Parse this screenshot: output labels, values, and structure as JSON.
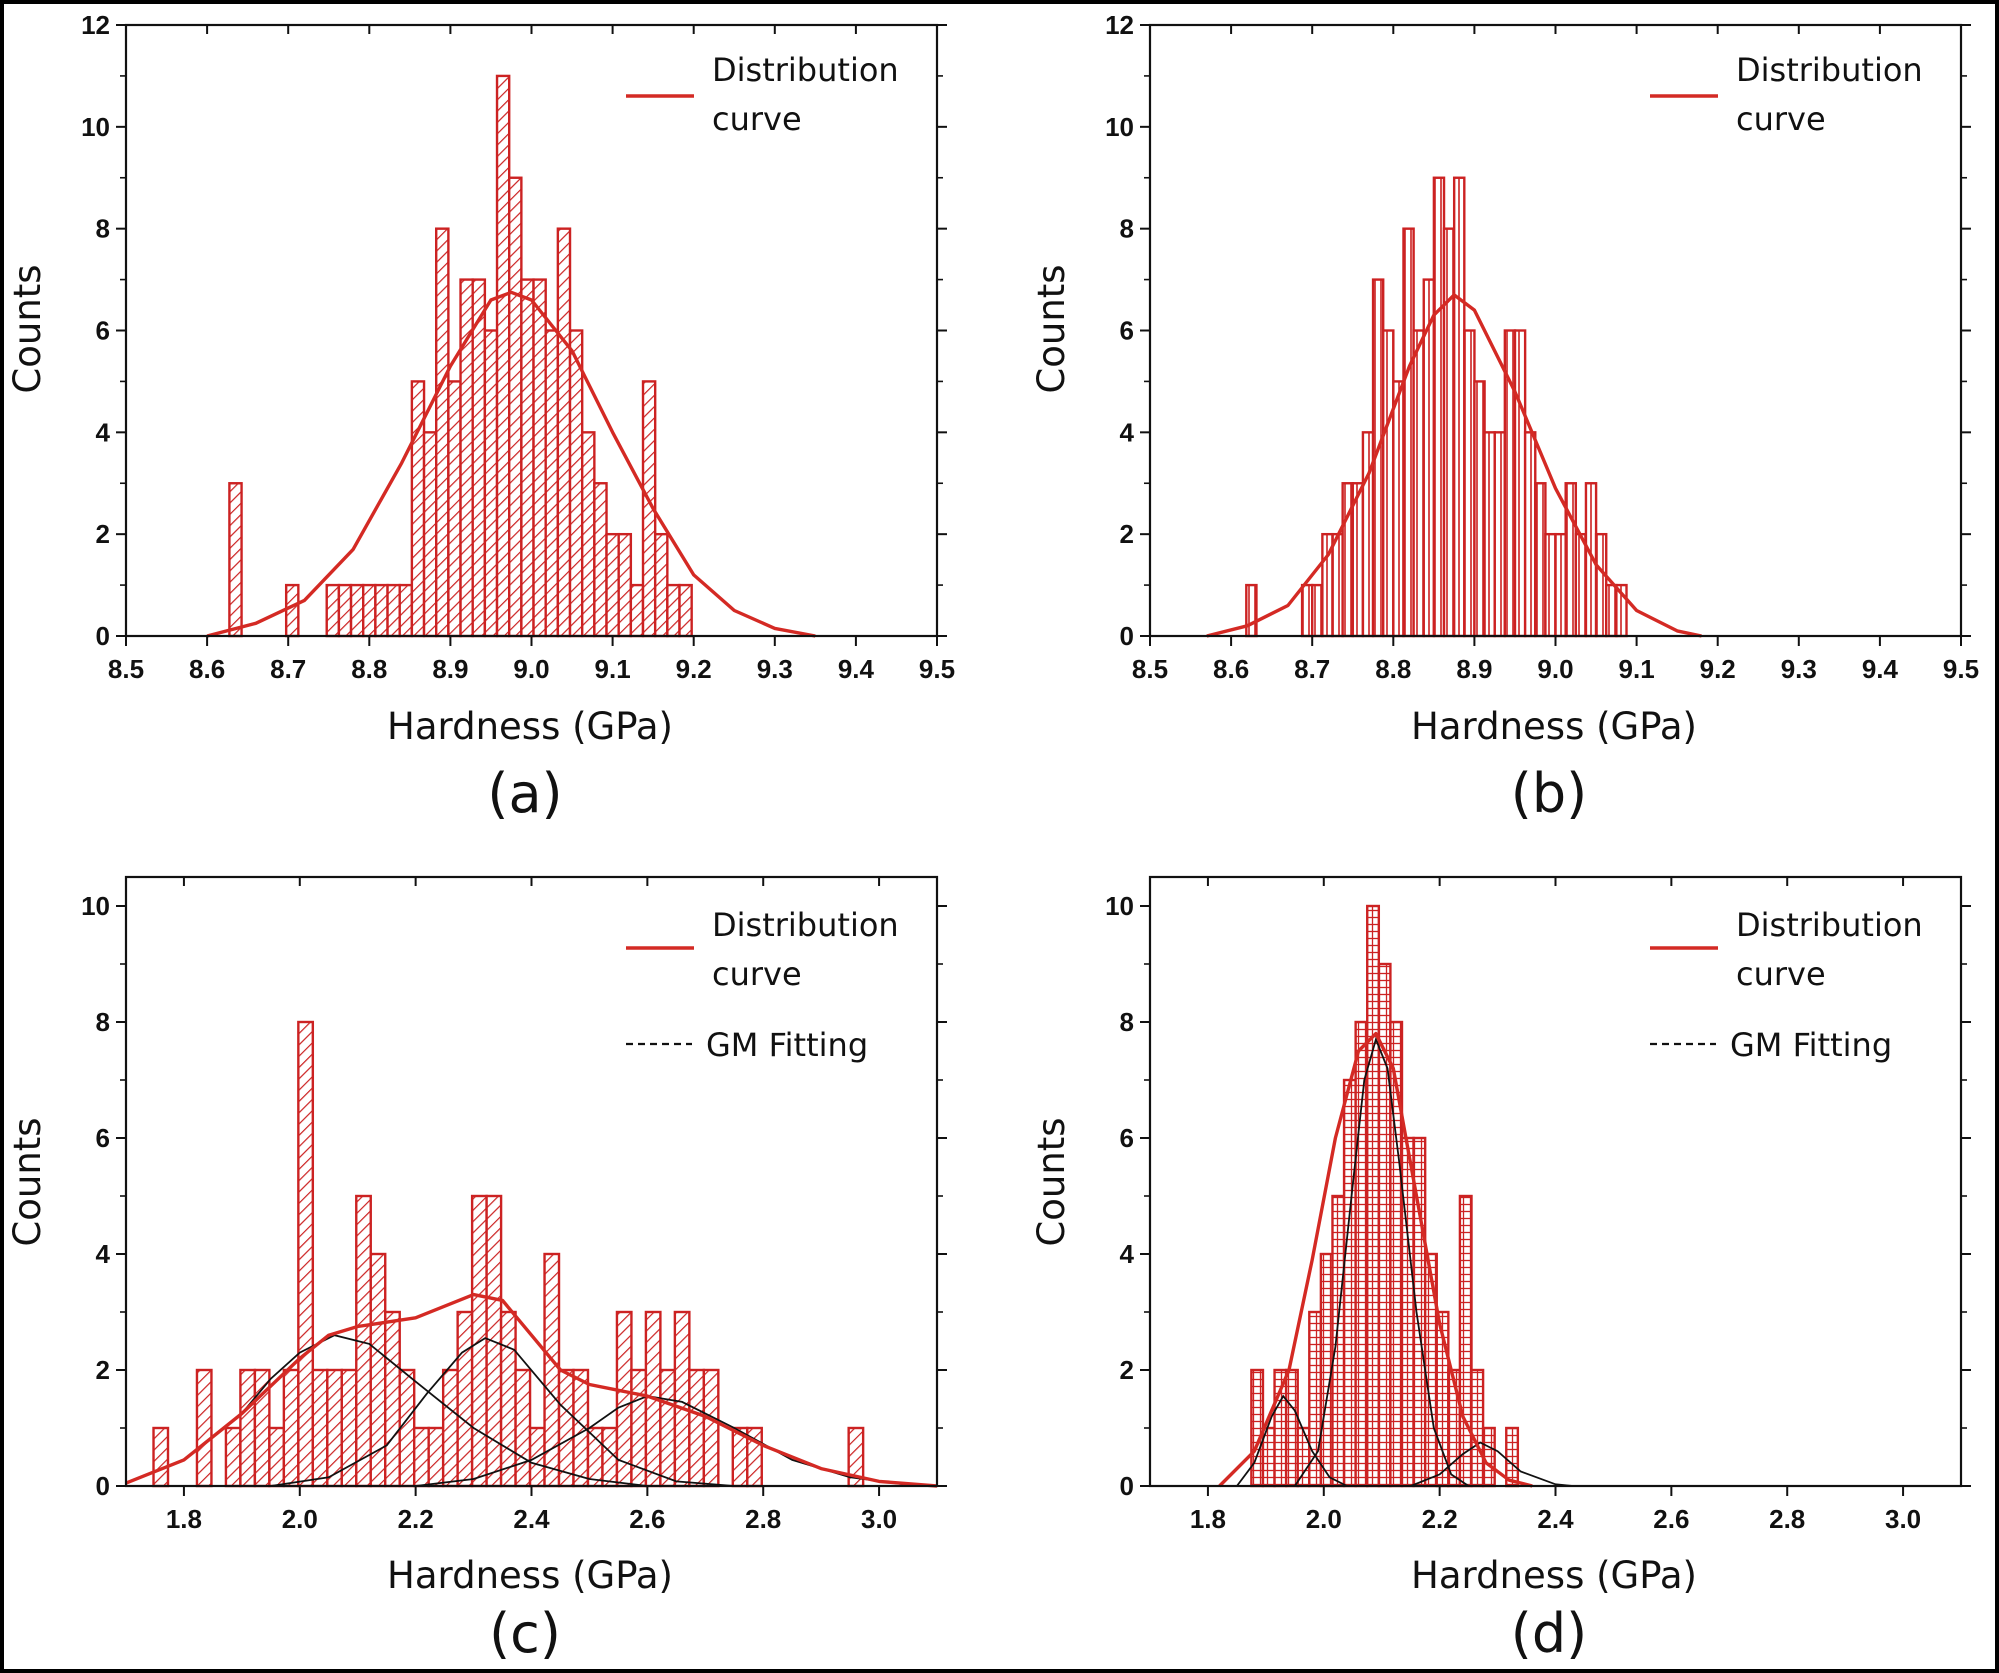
{
  "colors": {
    "bar": "#cc2222",
    "fit": "#d42a24",
    "gm": "#111111"
  },
  "chart_data": [
    {
      "panel": "(a)",
      "type": "bar",
      "xlabel": "Hardness (GPa)",
      "ylabel": "Counts",
      "xlim": [
        8.5,
        9.5
      ],
      "ylim": [
        0,
        12
      ],
      "xticks": [
        "8.5",
        "8.6",
        "8.7",
        "8.8",
        "8.9",
        "9.0",
        "9.1",
        "9.2",
        "9.3",
        "9.4",
        "9.5"
      ],
      "yticks": [
        "0",
        "2",
        "4",
        "6",
        "8",
        "10",
        "12"
      ],
      "bin_width": 0.015,
      "bins": [
        [
          8.635,
          3
        ],
        [
          8.705,
          1
        ],
        [
          8.755,
          1
        ],
        [
          8.77,
          1
        ],
        [
          8.785,
          1
        ],
        [
          8.8,
          1
        ],
        [
          8.815,
          1
        ],
        [
          8.83,
          1
        ],
        [
          8.845,
          1
        ],
        [
          8.86,
          5
        ],
        [
          8.875,
          4
        ],
        [
          8.89,
          8
        ],
        [
          8.905,
          5
        ],
        [
          8.92,
          7
        ],
        [
          8.935,
          7
        ],
        [
          8.95,
          6
        ],
        [
          8.965,
          11
        ],
        [
          8.98,
          9
        ],
        [
          8.995,
          7
        ],
        [
          9.01,
          7
        ],
        [
          9.025,
          6
        ],
        [
          9.04,
          8
        ],
        [
          9.055,
          6
        ],
        [
          9.07,
          4
        ],
        [
          9.085,
          3
        ],
        [
          9.1,
          2
        ],
        [
          9.115,
          2
        ],
        [
          9.13,
          1
        ],
        [
          9.145,
          5
        ],
        [
          9.16,
          2
        ],
        [
          9.175,
          1
        ],
        [
          9.19,
          1
        ]
      ],
      "curve": [
        [
          8.6,
          0.0
        ],
        [
          8.66,
          0.25
        ],
        [
          8.72,
          0.7
        ],
        [
          8.78,
          1.7
        ],
        [
          8.84,
          3.4
        ],
        [
          8.9,
          5.3
        ],
        [
          8.95,
          6.6
        ],
        [
          8.975,
          6.75
        ],
        [
          9.0,
          6.6
        ],
        [
          9.05,
          5.6
        ],
        [
          9.1,
          4.0
        ],
        [
          9.15,
          2.5
        ],
        [
          9.2,
          1.2
        ],
        [
          9.25,
          0.5
        ],
        [
          9.3,
          0.15
        ],
        [
          9.35,
          0.0
        ]
      ],
      "legend": [
        "Distribution",
        "curve"
      ],
      "hatch": "diag"
    },
    {
      "panel": "(b)",
      "type": "bar",
      "xlabel": "Hardness (GPa)",
      "ylabel": "Counts",
      "xlim": [
        8.5,
        9.5
      ],
      "ylim": [
        0,
        12
      ],
      "xticks": [
        "8.5",
        "8.6",
        "8.7",
        "8.8",
        "8.9",
        "9.0",
        "9.1",
        "9.2",
        "9.3",
        "9.4",
        "9.5"
      ],
      "yticks": [
        "0",
        "2",
        "4",
        "6",
        "8",
        "10",
        "12"
      ],
      "bin_width": 0.0125,
      "bins": [
        [
          8.625,
          1
        ],
        [
          8.6938,
          1
        ],
        [
          8.7063,
          1
        ],
        [
          8.7188,
          2
        ],
        [
          8.7313,
          2
        ],
        [
          8.7438,
          3
        ],
        [
          8.7563,
          3
        ],
        [
          8.7688,
          4
        ],
        [
          8.7813,
          7
        ],
        [
          8.7938,
          6
        ],
        [
          8.8063,
          5
        ],
        [
          8.8188,
          8
        ],
        [
          8.8313,
          6
        ],
        [
          8.8438,
          7
        ],
        [
          8.8563,
          9
        ],
        [
          8.8688,
          8
        ],
        [
          8.8813,
          9
        ],
        [
          8.8938,
          6
        ],
        [
          8.9063,
          5
        ],
        [
          8.9188,
          4
        ],
        [
          8.9313,
          4
        ],
        [
          8.9438,
          6
        ],
        [
          8.9563,
          6
        ],
        [
          8.9688,
          4
        ],
        [
          8.9813,
          3
        ],
        [
          8.9938,
          2
        ],
        [
          9.0063,
          2
        ],
        [
          9.0188,
          3
        ],
        [
          9.0313,
          2
        ],
        [
          9.0438,
          3
        ],
        [
          9.0563,
          2
        ],
        [
          9.0688,
          1
        ],
        [
          9.0813,
          1
        ]
      ],
      "curve": [
        [
          8.57,
          0.0
        ],
        [
          8.62,
          0.2
        ],
        [
          8.67,
          0.6
        ],
        [
          8.72,
          1.6
        ],
        [
          8.77,
          3.2
        ],
        [
          8.82,
          5.3
        ],
        [
          8.85,
          6.3
        ],
        [
          8.875,
          6.7
        ],
        [
          8.9,
          6.4
        ],
        [
          8.95,
          4.8
        ],
        [
          9.0,
          2.9
        ],
        [
          9.05,
          1.4
        ],
        [
          9.1,
          0.5
        ],
        [
          9.15,
          0.1
        ],
        [
          9.18,
          0.0
        ]
      ],
      "legend": [
        "Distribution",
        "curve"
      ],
      "hatch": "vert"
    },
    {
      "panel": "(c)",
      "type": "bar",
      "xlabel": "Hardness (GPa)",
      "ylabel": "Counts",
      "xlim": [
        1.7,
        3.1
      ],
      "ylim": [
        0,
        10.5
      ],
      "xticks": [
        "1.8",
        "2.0",
        "2.2",
        "2.4",
        "2.6",
        "2.8",
        "3.0"
      ],
      "xtick_values": [
        1.8,
        2.0,
        2.2,
        2.4,
        2.6,
        2.8,
        3.0
      ],
      "yticks": [
        "0",
        "2",
        "4",
        "6",
        "8",
        "10"
      ],
      "bin_width": 0.025,
      "bins": [
        [
          1.76,
          1
        ],
        [
          1.835,
          2
        ],
        [
          1.885,
          1
        ],
        [
          1.91,
          2
        ],
        [
          1.935,
          2
        ],
        [
          1.96,
          1
        ],
        [
          1.985,
          2
        ],
        [
          2.01,
          8
        ],
        [
          2.035,
          2
        ],
        [
          2.06,
          2
        ],
        [
          2.085,
          2
        ],
        [
          2.11,
          5
        ],
        [
          2.135,
          4
        ],
        [
          2.16,
          3
        ],
        [
          2.185,
          2
        ],
        [
          2.21,
          1
        ],
        [
          2.235,
          1
        ],
        [
          2.26,
          2
        ],
        [
          2.285,
          3
        ],
        [
          2.31,
          5
        ],
        [
          2.335,
          5
        ],
        [
          2.36,
          3
        ],
        [
          2.385,
          2
        ],
        [
          2.41,
          1
        ],
        [
          2.435,
          4
        ],
        [
          2.46,
          2
        ],
        [
          2.485,
          2
        ],
        [
          2.51,
          1
        ],
        [
          2.535,
          1
        ],
        [
          2.56,
          3
        ],
        [
          2.585,
          2
        ],
        [
          2.61,
          3
        ],
        [
          2.635,
          2
        ],
        [
          2.66,
          3
        ],
        [
          2.685,
          2
        ],
        [
          2.71,
          2
        ],
        [
          2.76,
          1
        ],
        [
          2.785,
          1
        ],
        [
          2.96,
          1
        ]
      ],
      "curve": [
        [
          1.7,
          0.05
        ],
        [
          1.8,
          0.45
        ],
        [
          1.9,
          1.25
        ],
        [
          2.0,
          2.2
        ],
        [
          2.05,
          2.6
        ],
        [
          2.1,
          2.75
        ],
        [
          2.2,
          2.9
        ],
        [
          2.3,
          3.3
        ],
        [
          2.35,
          3.2
        ],
        [
          2.4,
          2.6
        ],
        [
          2.45,
          2.0
        ],
        [
          2.5,
          1.75
        ],
        [
          2.55,
          1.65
        ],
        [
          2.6,
          1.55
        ],
        [
          2.7,
          1.2
        ],
        [
          2.8,
          0.7
        ],
        [
          2.9,
          0.3
        ],
        [
          3.0,
          0.08
        ],
        [
          3.1,
          0.0
        ]
      ],
      "gm_components": [
        [
          [
            1.7,
            0.05
          ],
          [
            1.8,
            0.45
          ],
          [
            1.9,
            1.25
          ],
          [
            1.95,
            1.85
          ],
          [
            2.0,
            2.3
          ],
          [
            2.06,
            2.6
          ],
          [
            2.12,
            2.45
          ],
          [
            2.2,
            1.8
          ],
          [
            2.3,
            1.0
          ],
          [
            2.4,
            0.4
          ],
          [
            2.5,
            0.12
          ],
          [
            2.6,
            0.0
          ]
        ],
        [
          [
            1.95,
            0.0
          ],
          [
            2.05,
            0.15
          ],
          [
            2.15,
            0.7
          ],
          [
            2.22,
            1.6
          ],
          [
            2.28,
            2.3
          ],
          [
            2.32,
            2.55
          ],
          [
            2.37,
            2.35
          ],
          [
            2.45,
            1.4
          ],
          [
            2.55,
            0.45
          ],
          [
            2.65,
            0.08
          ],
          [
            2.75,
            0.0
          ]
        ],
        [
          [
            2.2,
            0.0
          ],
          [
            2.3,
            0.12
          ],
          [
            2.4,
            0.45
          ],
          [
            2.5,
            1.0
          ],
          [
            2.55,
            1.35
          ],
          [
            2.6,
            1.55
          ],
          [
            2.66,
            1.45
          ],
          [
            2.75,
            1.0
          ],
          [
            2.85,
            0.45
          ],
          [
            2.95,
            0.15
          ],
          [
            3.05,
            0.02
          ]
        ]
      ],
      "legend": [
        "Distribution",
        "curve"
      ],
      "gm_legend": "GM Fitting",
      "hatch": "diag"
    },
    {
      "panel": "(d)",
      "type": "bar",
      "xlabel": "Hardness (GPa)",
      "ylabel": "Counts",
      "xlim": [
        1.7,
        3.1
      ],
      "ylim": [
        0,
        10.5
      ],
      "xticks": [
        "1.8",
        "2.0",
        "2.2",
        "2.4",
        "2.6",
        "2.8",
        "3.0"
      ],
      "xtick_values": [
        1.8,
        2.0,
        2.2,
        2.4,
        2.6,
        2.8,
        3.0
      ],
      "yticks": [
        "0",
        "2",
        "4",
        "6",
        "8",
        "10"
      ],
      "bin_width": 0.02,
      "bins": [
        [
          1.885,
          2
        ],
        [
          1.905,
          1
        ],
        [
          1.925,
          2
        ],
        [
          1.945,
          2
        ],
        [
          1.965,
          1
        ],
        [
          1.985,
          3
        ],
        [
          2.005,
          4
        ],
        [
          2.025,
          5
        ],
        [
          2.045,
          7
        ],
        [
          2.065,
          8
        ],
        [
          2.085,
          10
        ],
        [
          2.105,
          9
        ],
        [
          2.125,
          8
        ],
        [
          2.145,
          6
        ],
        [
          2.165,
          6
        ],
        [
          2.185,
          4
        ],
        [
          2.205,
          3
        ],
        [
          2.225,
          2
        ],
        [
          2.245,
          5
        ],
        [
          2.265,
          2
        ],
        [
          2.285,
          1
        ],
        [
          2.325,
          1
        ]
      ],
      "curve": [
        [
          1.82,
          0.0
        ],
        [
          1.88,
          0.6
        ],
        [
          1.94,
          2.0
        ],
        [
          1.98,
          3.9
        ],
        [
          2.02,
          6.0
        ],
        [
          2.06,
          7.5
        ],
        [
          2.09,
          7.8
        ],
        [
          2.12,
          7.2
        ],
        [
          2.16,
          5.0
        ],
        [
          2.2,
          2.8
        ],
        [
          2.24,
          1.2
        ],
        [
          2.28,
          0.4
        ],
        [
          2.32,
          0.1
        ],
        [
          2.36,
          0.0
        ]
      ],
      "gm_components": [
        [
          [
            1.85,
            0.0
          ],
          [
            1.88,
            0.4
          ],
          [
            1.91,
            1.2
          ],
          [
            1.93,
            1.55
          ],
          [
            1.95,
            1.3
          ],
          [
            1.98,
            0.6
          ],
          [
            2.01,
            0.15
          ],
          [
            2.04,
            0.0
          ]
        ],
        [
          [
            1.95,
            0.0
          ],
          [
            1.99,
            0.6
          ],
          [
            2.02,
            2.4
          ],
          [
            2.05,
            5.2
          ],
          [
            2.07,
            7.0
          ],
          [
            2.09,
            7.7
          ],
          [
            2.11,
            7.2
          ],
          [
            2.13,
            5.6
          ],
          [
            2.16,
            3.0
          ],
          [
            2.19,
            1.0
          ],
          [
            2.22,
            0.2
          ],
          [
            2.25,
            0.0
          ]
        ],
        [
          [
            2.15,
            0.0
          ],
          [
            2.2,
            0.2
          ],
          [
            2.24,
            0.55
          ],
          [
            2.27,
            0.75
          ],
          [
            2.3,
            0.6
          ],
          [
            2.34,
            0.25
          ],
          [
            2.4,
            0.03
          ],
          [
            2.43,
            0.0
          ]
        ]
      ],
      "legend": [
        "Distribution",
        "curve"
      ],
      "gm_legend": "GM Fitting",
      "hatch": "grid"
    }
  ]
}
